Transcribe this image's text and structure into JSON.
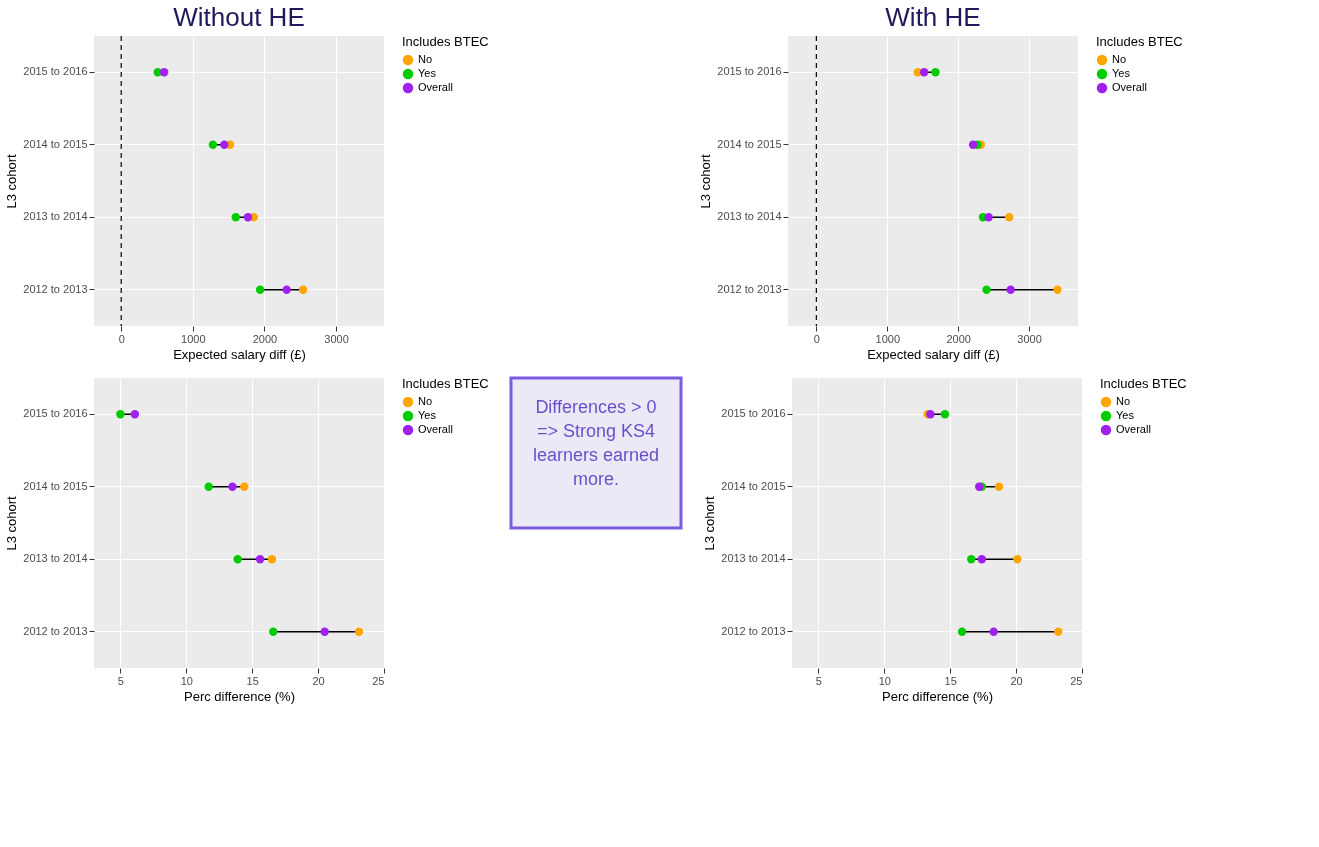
{
  "chart_data": [
    {
      "type": "scatter",
      "title": "Without HE",
      "orientation": "horizontal",
      "xlabel": "Expected salary diff (£)",
      "ylabel": "L3 cohort",
      "legend_title": "Includes BTEC",
      "legend": "right",
      "grid": true,
      "marker": "circle",
      "categories": [
        "2015 to 2016",
        "2014 to 2015",
        "2013 to 2014",
        "2012 to 2013"
      ],
      "xlim": [
        -380,
        3670
      ],
      "xticks": [
        0,
        1000,
        2000,
        3000
      ],
      "ref_lines": [
        {
          "axis": "x",
          "value": 0,
          "color": "#000000",
          "line_style": "dashed"
        }
      ],
      "series": [
        {
          "name": "No",
          "color": "#ffa500",
          "values": [
            null,
            1520,
            1850,
            2540
          ]
        },
        {
          "name": "Yes",
          "color": "#00cc00",
          "values": [
            510,
            1280,
            1600,
            1940
          ]
        },
        {
          "name": "Overall",
          "color": "#a020f0",
          "values": [
            600,
            1440,
            1770,
            2310
          ]
        }
      ]
    },
    {
      "type": "scatter",
      "title": "With HE",
      "orientation": "horizontal",
      "xlabel": "Expected salary diff (£)",
      "ylabel": "L3 cohort",
      "legend_title": "Includes BTEC",
      "legend": "right",
      "grid": true,
      "marker": "circle",
      "categories": [
        "2015 to 2016",
        "2014 to 2015",
        "2013 to 2014",
        "2012 to 2013"
      ],
      "xlim": [
        -400,
        3690
      ],
      "xticks": [
        0,
        1000,
        2000,
        3000
      ],
      "ref_lines": [
        {
          "axis": "x",
          "value": 0,
          "color": "#000000",
          "line_style": "dashed"
        }
      ],
      "series": [
        {
          "name": "No",
          "color": "#ffa500",
          "values": [
            1430,
            2320,
            2720,
            3400
          ]
        },
        {
          "name": "Yes",
          "color": "#00cc00",
          "values": [
            1680,
            2270,
            2350,
            2400
          ]
        },
        {
          "name": "Overall",
          "color": "#a020f0",
          "values": [
            1520,
            2210,
            2430,
            2740
          ]
        }
      ]
    },
    {
      "type": "scatter",
      "orientation": "horizontal",
      "xlabel": "Perc difference (%)",
      "ylabel": "L3 cohort",
      "legend_title": "Includes BTEC",
      "legend": "right",
      "grid": true,
      "marker": "circle",
      "categories": [
        "2015 to 2016",
        "2014 to 2015",
        "2013 to 2014",
        "2012 to 2013"
      ],
      "xlim": [
        3.0,
        25.0
      ],
      "xticks": [
        5,
        10,
        15,
        20,
        25
      ],
      "series": [
        {
          "name": "No",
          "color": "#ffa500",
          "values": [
            null,
            14.4,
            16.5,
            23.1
          ]
        },
        {
          "name": "Yes",
          "color": "#00cc00",
          "values": [
            5.0,
            11.7,
            13.9,
            16.6
          ]
        },
        {
          "name": "Overall",
          "color": "#a020f0",
          "values": [
            6.1,
            13.5,
            15.6,
            20.5
          ]
        }
      ]
    },
    {
      "type": "scatter",
      "orientation": "horizontal",
      "xlabel": "Perc difference (%)",
      "ylabel": "L3 cohort",
      "legend_title": "Includes BTEC",
      "legend": "right",
      "grid": true,
      "marker": "circle",
      "categories": [
        "2015 to 2016",
        "2014 to 2015",
        "2013 to 2014",
        "2012 to 2013"
      ],
      "xlim": [
        3.0,
        25.0
      ],
      "xticks": [
        5,
        10,
        15,
        20,
        25
      ],
      "series": [
        {
          "name": "No",
          "color": "#ffa500",
          "values": [
            13.3,
            18.7,
            20.1,
            23.2
          ]
        },
        {
          "name": "Yes",
          "color": "#00cc00",
          "values": [
            14.6,
            17.4,
            16.6,
            15.9
          ]
        },
        {
          "name": "Overall",
          "color": "#a020f0",
          "values": [
            13.5,
            17.2,
            17.4,
            18.3
          ]
        }
      ]
    },
    {
      "type": "other",
      "annotations": [
        "Differences > 0\n=> Strong KS4\nlearners earned\nmore."
      ]
    }
  ]
}
